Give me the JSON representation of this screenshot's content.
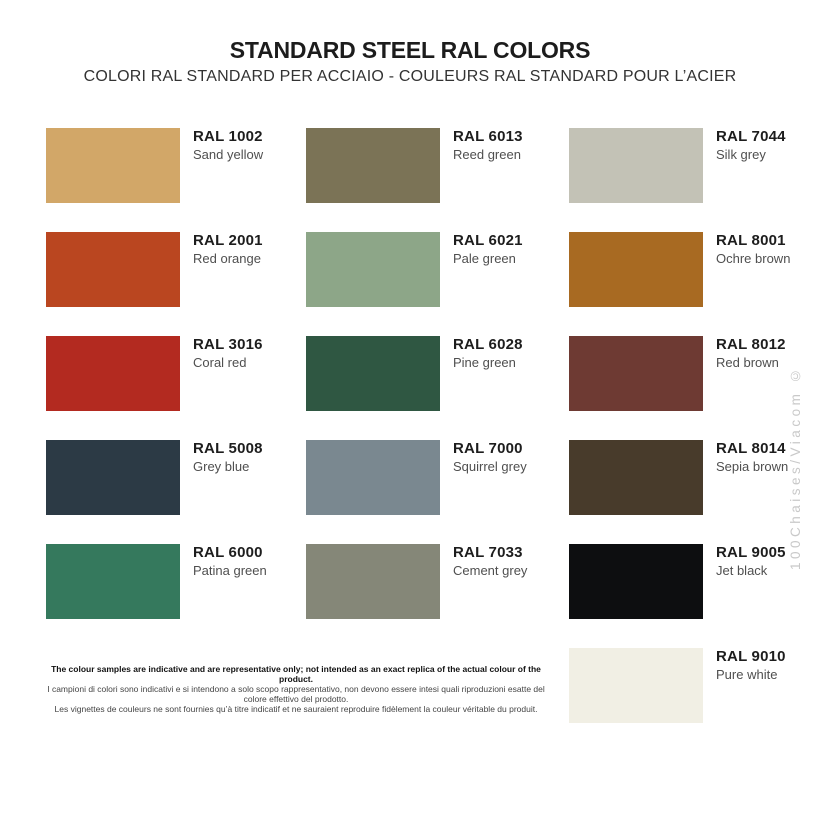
{
  "header": {
    "title": "STANDARD STEEL RAL COLORS",
    "subtitle": "COLORI RAL STANDARD PER ACCIAIO - COULEURS RAL STANDARD POUR L’ACIER"
  },
  "swatches": [
    {
      "code": "RAL 1002",
      "name": "Sand yellow",
      "hex": "#D2A768"
    },
    {
      "code": "RAL 2001",
      "name": "Red orange",
      "hex": "#BA4620"
    },
    {
      "code": "RAL 3016",
      "name": "Coral red",
      "hex": "#B32A20"
    },
    {
      "code": "RAL 5008",
      "name": "Grey blue",
      "hex": "#2C3A45"
    },
    {
      "code": "RAL 6000",
      "name": "Patina green",
      "hex": "#35795D"
    },
    {
      "code": "RAL 6013",
      "name": "Reed green",
      "hex": "#7B7356"
    },
    {
      "code": "RAL 6021",
      "name": "Pale green",
      "hex": "#8DA688"
    },
    {
      "code": "RAL 6028",
      "name": "Pine green",
      "hex": "#2F5742"
    },
    {
      "code": "RAL 7000",
      "name": "Squirrel grey",
      "hex": "#7A8890"
    },
    {
      "code": "RAL 7033",
      "name": "Cement grey",
      "hex": "#858778"
    },
    {
      "code": "RAL 7044",
      "name": "Silk grey",
      "hex": "#C3C2B6"
    },
    {
      "code": "RAL 8001",
      "name": "Ochre brown",
      "hex": "#A86A22"
    },
    {
      "code": "RAL 8012",
      "name": "Red brown",
      "hex": "#6E3A33"
    },
    {
      "code": "RAL 8014",
      "name": "Sepia brown",
      "hex": "#483B2B"
    },
    {
      "code": "RAL 9005",
      "name": "Jet black",
      "hex": "#0D0E10"
    },
    {
      "code": "RAL 9010",
      "name": "Pure white",
      "hex": "#F1EFE4"
    }
  ],
  "footer": {
    "line_en": "The colour samples are indicative and are representative only; not intended as an exact replica of the actual colour of the product.",
    "line_it": "I campioni di colori sono indicativi e si intendono a solo scopo rappresentativo, non devono essere intesi quali riproduzioni esatte del colore effettivo del prodotto.",
    "line_fr": "Les vignettes de couleurs ne sont fournies qu’à titre indicatif et ne sauraient reproduire fidèlement la couleur véritable du produit."
  },
  "watermark": {
    "text": "100Chaises/Viacom ©",
    "color": "#c9c9c9"
  }
}
